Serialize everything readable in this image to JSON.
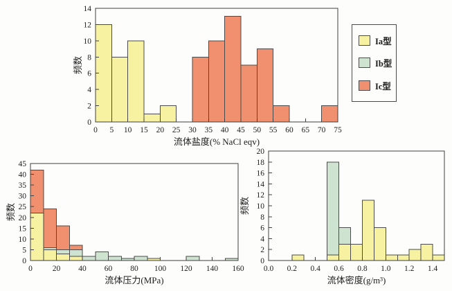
{
  "colors": {
    "Ia": "#f7f1a2",
    "Ib": "#cee3d0",
    "Ic": "#f0906f",
    "bar_border": "#4a4a4a",
    "axis": "#3f3f3f",
    "text": "#1c1c1c"
  },
  "legend": {
    "items": [
      {
        "key": "Ia",
        "label": "Ia型"
      },
      {
        "key": "Ib",
        "label": "Ib型"
      },
      {
        "key": "Ic",
        "label": "Ic型"
      }
    ]
  },
  "chart_data": [
    {
      "id": "fluid-salinity-histogram",
      "type": "bar",
      "stacked": true,
      "xlabel": "流体盐度(% NaCl eqv)",
      "ylabel": "频数",
      "xlim": [
        0,
        75
      ],
      "ylim": [
        0,
        14
      ],
      "bin_width": 5,
      "xticks": [
        0,
        5,
        10,
        15,
        20,
        25,
        30,
        35,
        40,
        45,
        50,
        55,
        60,
        65,
        70,
        75
      ],
      "xtick_labels": [
        "0",
        "5",
        "10",
        "15",
        "20",
        "25",
        "30",
        "35",
        "40",
        "45",
        "50",
        "55",
        "60",
        "65",
        "70",
        "75"
      ],
      "yticks": [
        0,
        2,
        4,
        6,
        8,
        10,
        12,
        14
      ],
      "ytick_labels": [
        "0",
        "2",
        "4",
        "6",
        "8",
        "10",
        "12",
        "14"
      ],
      "grid": false,
      "bars": [
        {
          "x0": 0,
          "segments": [
            {
              "series": "Ia",
              "value": 12
            }
          ]
        },
        {
          "x0": 5,
          "segments": [
            {
              "series": "Ia",
              "value": 8
            }
          ]
        },
        {
          "x0": 10,
          "segments": [
            {
              "series": "Ia",
              "value": 10
            }
          ]
        },
        {
          "x0": 15,
          "segments": [
            {
              "series": "Ia",
              "value": 1
            }
          ]
        },
        {
          "x0": 20,
          "segments": [
            {
              "series": "Ia",
              "value": 2
            }
          ]
        },
        {
          "x0": 30,
          "segments": [
            {
              "series": "Ic",
              "value": 8
            }
          ]
        },
        {
          "x0": 35,
          "segments": [
            {
              "series": "Ic",
              "value": 10
            }
          ]
        },
        {
          "x0": 40,
          "segments": [
            {
              "series": "Ic",
              "value": 13
            }
          ]
        },
        {
          "x0": 45,
          "segments": [
            {
              "series": "Ic",
              "value": 7
            }
          ]
        },
        {
          "x0": 50,
          "segments": [
            {
              "series": "Ic",
              "value": 9
            }
          ]
        },
        {
          "x0": 55,
          "segments": [
            {
              "series": "Ic",
              "value": 2
            }
          ]
        },
        {
          "x0": 70,
          "segments": [
            {
              "series": "Ic",
              "value": 2
            }
          ]
        }
      ]
    },
    {
      "id": "fluid-pressure-histogram",
      "type": "bar",
      "stacked": true,
      "xlabel": "流体压力(MPa)",
      "ylabel": "频数",
      "xlim": [
        0,
        160
      ],
      "ylim": [
        0,
        45
      ],
      "bin_width": 10,
      "xticks": [
        0,
        20,
        40,
        60,
        80,
        100,
        120,
        140,
        160
      ],
      "xtick_labels": [
        "0",
        "20",
        "40",
        "60",
        "80",
        "100",
        "120",
        "140",
        "160"
      ],
      "yticks": [
        0,
        5,
        10,
        15,
        20,
        25,
        30,
        35,
        40,
        45
      ],
      "ytick_labels": [
        "0",
        "5",
        "10",
        "15",
        "20",
        "25",
        "30",
        "35",
        "40",
        "45"
      ],
      "grid": false,
      "bars": [
        {
          "x0": 0,
          "segments": [
            {
              "series": "Ia",
              "value": 22
            },
            {
              "series": "Ic",
              "value": 20
            }
          ]
        },
        {
          "x0": 10,
          "segments": [
            {
              "series": "Ia",
              "value": 5
            },
            {
              "series": "Ib",
              "value": 1
            },
            {
              "series": "Ic",
              "value": 18
            }
          ]
        },
        {
          "x0": 20,
          "segments": [
            {
              "series": "Ia",
              "value": 3
            },
            {
              "series": "Ib",
              "value": 2
            },
            {
              "series": "Ic",
              "value": 11
            }
          ]
        },
        {
          "x0": 30,
          "segments": [
            {
              "series": "Ia",
              "value": 2
            },
            {
              "series": "Ib",
              "value": 3
            },
            {
              "series": "Ic",
              "value": 2
            }
          ]
        },
        {
          "x0": 40,
          "segments": [
            {
              "series": "Ib",
              "value": 2
            }
          ]
        },
        {
          "x0": 50,
          "segments": [
            {
              "series": "Ib",
              "value": 4
            }
          ]
        },
        {
          "x0": 60,
          "segments": [
            {
              "series": "Ib",
              "value": 2
            }
          ]
        },
        {
          "x0": 70,
          "segments": [
            {
              "series": "Ib",
              "value": 1
            }
          ]
        },
        {
          "x0": 80,
          "segments": [
            {
              "series": "Ib",
              "value": 2
            }
          ]
        },
        {
          "x0": 90,
          "segments": [
            {
              "series": "Ia",
              "value": 1
            }
          ]
        },
        {
          "x0": 120,
          "segments": [
            {
              "series": "Ib",
              "value": 2
            }
          ]
        },
        {
          "x0": 150,
          "segments": [
            {
              "series": "Ib",
              "value": 1
            }
          ]
        }
      ]
    },
    {
      "id": "fluid-density-histogram",
      "type": "bar",
      "stacked": true,
      "xlabel": "流体密度(g/m³)",
      "ylabel": "频数",
      "xlim": [
        0,
        1.5
      ],
      "ylim": [
        0,
        20
      ],
      "bin_width": 0.1,
      "xticks": [
        0.0,
        0.2,
        0.4,
        0.6,
        0.8,
        1.0,
        1.2,
        1.4
      ],
      "xtick_labels": [
        "0.0",
        "0.2",
        "0.4",
        "0.6",
        "0.8",
        "1.0",
        "1.2",
        "1.4"
      ],
      "yticks": [
        0,
        2,
        4,
        6,
        8,
        10,
        12,
        14,
        16,
        18,
        20
      ],
      "ytick_labels": [
        "0",
        "2",
        "4",
        "6",
        "8",
        "10",
        "12",
        "14",
        "16",
        "18",
        "20"
      ],
      "grid": false,
      "bars": [
        {
          "x0": 0.2,
          "segments": [
            {
              "series": "Ia",
              "value": 1
            }
          ]
        },
        {
          "x0": 0.5,
          "segments": [
            {
              "series": "Ia",
              "value": 1
            },
            {
              "series": "Ib",
              "value": 17
            }
          ]
        },
        {
          "x0": 0.6,
          "segments": [
            {
              "series": "Ia",
              "value": 3
            },
            {
              "series": "Ib",
              "value": 3
            }
          ]
        },
        {
          "x0": 0.7,
          "segments": [
            {
              "series": "Ia",
              "value": 3
            }
          ]
        },
        {
          "x0": 0.8,
          "segments": [
            {
              "series": "Ia",
              "value": 11
            }
          ]
        },
        {
          "x0": 0.9,
          "segments": [
            {
              "series": "Ia",
              "value": 6
            }
          ]
        },
        {
          "x0": 1.0,
          "segments": [
            {
              "series": "Ia",
              "value": 1
            }
          ]
        },
        {
          "x0": 1.1,
          "segments": [
            {
              "series": "Ia",
              "value": 1
            }
          ]
        },
        {
          "x0": 1.2,
          "segments": [
            {
              "series": "Ia",
              "value": 2
            }
          ]
        },
        {
          "x0": 1.3,
          "segments": [
            {
              "series": "Ia",
              "value": 3
            }
          ]
        },
        {
          "x0": 1.4,
          "segments": [
            {
              "series": "Ia",
              "value": 1
            }
          ]
        }
      ]
    }
  ]
}
